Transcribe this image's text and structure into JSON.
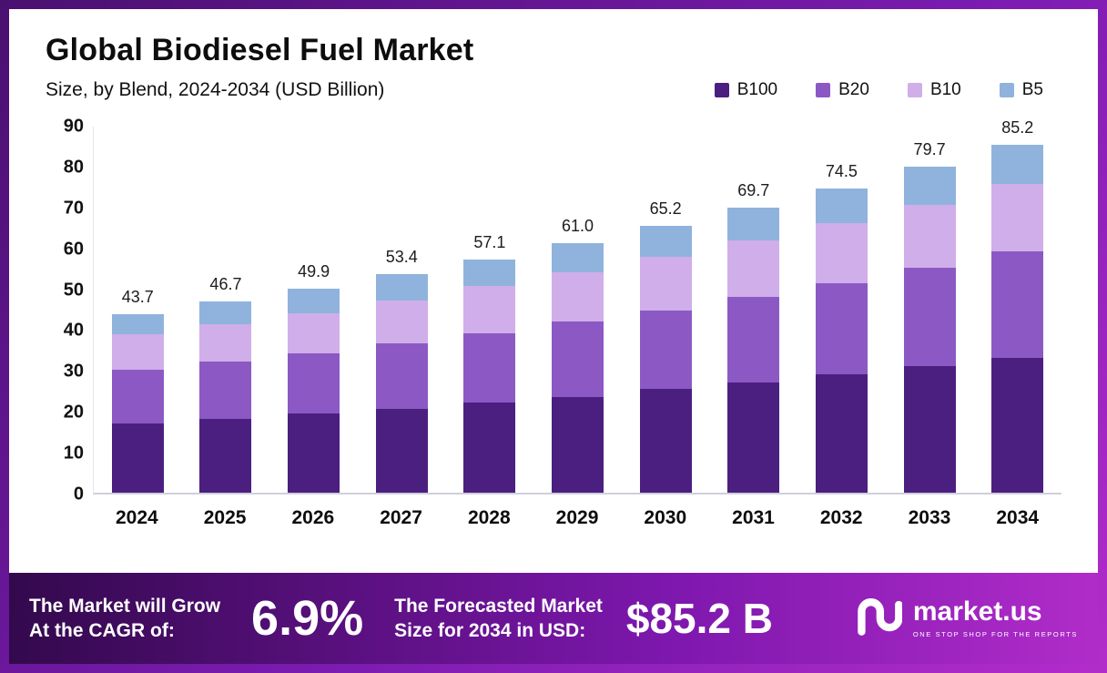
{
  "header": {
    "title": "Global Biodiesel Fuel Market",
    "subtitle": "Size, by Blend, 2024-2034 (USD Billion)"
  },
  "chart_data": {
    "type": "bar",
    "stacked": true,
    "title": "Global Biodiesel Fuel Market Size, by Blend, 2024-2034 (USD Billion)",
    "categories": [
      "2024",
      "2025",
      "2026",
      "2027",
      "2028",
      "2029",
      "2030",
      "2031",
      "2032",
      "2033",
      "2034"
    ],
    "series": [
      {
        "name": "B100",
        "color": "#4b1f7f",
        "values": [
          17.0,
          18.0,
          19.3,
          20.5,
          22.0,
          23.5,
          25.3,
          27.0,
          29.0,
          31.0,
          33.0
        ]
      },
      {
        "name": "B20",
        "color": "#8c59c4",
        "values": [
          13.0,
          14.0,
          14.8,
          16.0,
          17.0,
          18.4,
          19.2,
          21.0,
          22.3,
          24.0,
          26.0
        ]
      },
      {
        "name": "B10",
        "color": "#cfaeea",
        "values": [
          8.7,
          9.2,
          9.9,
          10.5,
          11.5,
          12.1,
          13.3,
          13.8,
          14.7,
          15.5,
          16.5
        ]
      },
      {
        "name": "B5",
        "color": "#8fb3dc",
        "values": [
          5.0,
          5.5,
          5.9,
          6.4,
          6.6,
          7.0,
          7.4,
          7.9,
          8.5,
          9.2,
          9.7
        ]
      }
    ],
    "totals": [
      "43.7",
      "46.7",
      "49.9",
      "53.4",
      "57.1",
      "61.0",
      "65.2",
      "69.7",
      "74.5",
      "79.7",
      "85.2"
    ],
    "ylim": [
      0,
      90
    ],
    "yticks": [
      0,
      10,
      20,
      30,
      40,
      50,
      60,
      70,
      80,
      90
    ],
    "xlabel": "",
    "ylabel": "",
    "grid": false,
    "legend_position": "top-right"
  },
  "footer": {
    "cagr_label_line1": "The Market will Grow",
    "cagr_label_line2": "At the CAGR of:",
    "cagr_value": "6.9%",
    "forecast_label_line1": "The Forecasted Market",
    "forecast_label_line2": "Size for 2034 in USD:",
    "forecast_value": "$85.2 B",
    "brand_name": "market.us",
    "brand_tagline": "ONE STOP SHOP FOR THE REPORTS"
  },
  "colors": {
    "frame_gradient_start": "#4a1070",
    "frame_gradient_end": "#b32ccb",
    "banner_gradient_start": "#33094d",
    "banner_gradient_end": "#b02cc9"
  }
}
